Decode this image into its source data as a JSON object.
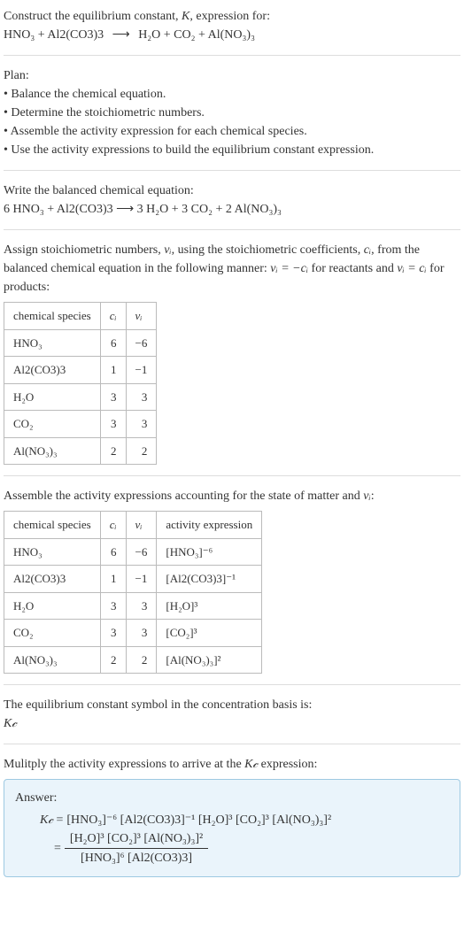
{
  "header": {
    "prompt": "Construct the equilibrium constant, ",
    "K": "K",
    "prompt2": ", expression for:",
    "eq_lhs": "HNO₃ + Al2(CO3)3",
    "arrow": "⟶",
    "eq_rhs": "H₂O + CO₂ + Al(NO₃)₃"
  },
  "plan": {
    "title": "Plan:",
    "items": [
      "• Balance the chemical equation.",
      "• Determine the stoichiometric numbers.",
      "• Assemble the activity expression for each chemical species.",
      "• Use the activity expressions to build the equilibrium constant expression."
    ]
  },
  "balanced": {
    "label": "Write the balanced chemical equation:",
    "eq": "6 HNO₃ + Al2(CO3)3  ⟶  3 H₂O + 3 CO₂ + 2 Al(NO₃)₃"
  },
  "assign": {
    "text1": "Assign stoichiometric numbers, ",
    "nu_i": "νᵢ",
    "text2": ", using the stoichiometric coefficients, ",
    "c_i": "cᵢ",
    "text3": ", from the balanced chemical equation in the following manner: ",
    "rel1": "νᵢ = −cᵢ",
    "text4": " for reactants and ",
    "rel2": "νᵢ = cᵢ",
    "text5": " for products:"
  },
  "table1": {
    "headers": [
      "chemical species",
      "cᵢ",
      "νᵢ"
    ],
    "rows": [
      [
        "HNO₃",
        "6",
        "−6"
      ],
      [
        "Al2(CO3)3",
        "1",
        "−1"
      ],
      [
        "H₂O",
        "3",
        "3"
      ],
      [
        "CO₂",
        "3",
        "3"
      ],
      [
        "Al(NO₃)₃",
        "2",
        "2"
      ]
    ]
  },
  "assemble": {
    "text1": "Assemble the activity expressions accounting for the state of matter and ",
    "nu_i": "νᵢ",
    "text2": ":"
  },
  "table2": {
    "headers": [
      "chemical species",
      "cᵢ",
      "νᵢ",
      "activity expression"
    ],
    "rows": [
      [
        "HNO₃",
        "6",
        "−6",
        "[HNO₃]⁻⁶"
      ],
      [
        "Al2(CO3)3",
        "1",
        "−1",
        "[Al2(CO3)3]⁻¹"
      ],
      [
        "H₂O",
        "3",
        "3",
        "[H₂O]³"
      ],
      [
        "CO₂",
        "3",
        "3",
        "[CO₂]³"
      ],
      [
        "Al(NO₃)₃",
        "2",
        "2",
        "[Al(NO₃)₃]²"
      ]
    ]
  },
  "symbol": {
    "text": "The equilibrium constant symbol in the concentration basis is:",
    "kc": "K𝒸"
  },
  "multiply": {
    "text1": "Mulitply the activity expressions to arrive at the ",
    "kc": "K𝒸",
    "text2": " expression:"
  },
  "answer": {
    "label": "Answer:",
    "kc": "K𝒸",
    "eq": "=",
    "line1": "[HNO₃]⁻⁶ [Al2(CO3)3]⁻¹ [H₂O]³ [CO₂]³ [Al(NO₃)₃]²",
    "frac_num": "[H₂O]³ [CO₂]³ [Al(NO₃)₃]²",
    "frac_den": "[HNO₃]⁶ [Al2(CO3)3]"
  }
}
